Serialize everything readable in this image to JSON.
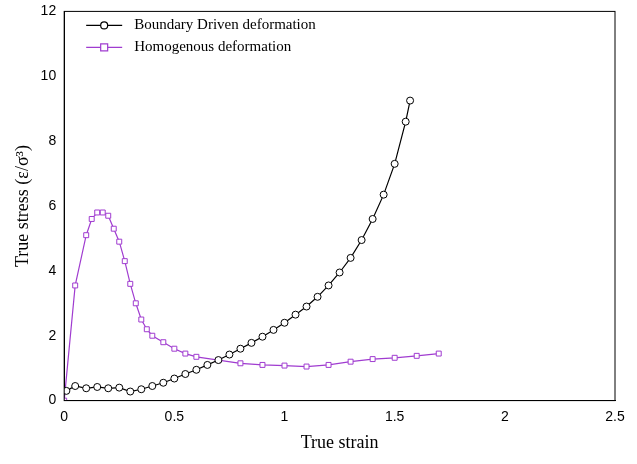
{
  "chart_data": {
    "type": "line",
    "x_label": "True strain",
    "y_label": "True stress (ε/σ³)",
    "xlim": [
      0,
      2.5
    ],
    "xticks": [
      0,
      0.5,
      1,
      1.5,
      2,
      2.5
    ],
    "ylim": [
      0,
      12
    ],
    "yticks": [
      0,
      2,
      4,
      6,
      8,
      10,
      12
    ],
    "grid": false,
    "legend": "upper left",
    "series": [
      {
        "name": "Boundary Driven deformation",
        "color": "#000000",
        "marker": "circle",
        "line_style": "solid",
        "x": [
          0.01,
          0.05,
          0.1,
          0.15,
          0.2,
          0.25,
          0.3,
          0.35,
          0.4,
          0.45,
          0.5,
          0.55,
          0.6,
          0.65,
          0.7,
          0.75,
          0.8,
          0.85,
          0.9,
          0.95,
          1.0,
          1.05,
          1.1,
          1.15,
          1.2,
          1.25,
          1.3,
          1.35,
          1.4,
          1.45,
          1.5,
          1.55,
          1.57
        ],
        "values": [
          0.3,
          0.45,
          0.38,
          0.42,
          0.38,
          0.4,
          0.28,
          0.35,
          0.45,
          0.55,
          0.68,
          0.82,
          0.95,
          1.1,
          1.25,
          1.42,
          1.6,
          1.78,
          1.97,
          2.18,
          2.4,
          2.65,
          2.9,
          3.2,
          3.55,
          3.95,
          4.4,
          4.95,
          5.6,
          6.35,
          7.3,
          8.6,
          9.25
        ]
      },
      {
        "name": "Homogenous deformation",
        "color": "#a03cd0",
        "marker": "square",
        "line_style": "solid",
        "x": [
          0,
          0.05,
          0.1,
          0.125,
          0.15,
          0.175,
          0.2,
          0.225,
          0.25,
          0.275,
          0.3,
          0.325,
          0.35,
          0.375,
          0.4,
          0.45,
          0.5,
          0.55,
          0.6,
          0.7,
          0.8,
          0.9,
          1.0,
          1.1,
          1.2,
          1.3,
          1.4,
          1.5,
          1.6,
          1.7
        ],
        "values": [
          0,
          3.55,
          5.1,
          5.6,
          5.8,
          5.8,
          5.7,
          5.3,
          4.9,
          4.3,
          3.6,
          3.0,
          2.5,
          2.2,
          2.0,
          1.8,
          1.6,
          1.45,
          1.35,
          1.25,
          1.15,
          1.1,
          1.08,
          1.05,
          1.1,
          1.2,
          1.28,
          1.32,
          1.38,
          1.45
        ]
      }
    ]
  }
}
